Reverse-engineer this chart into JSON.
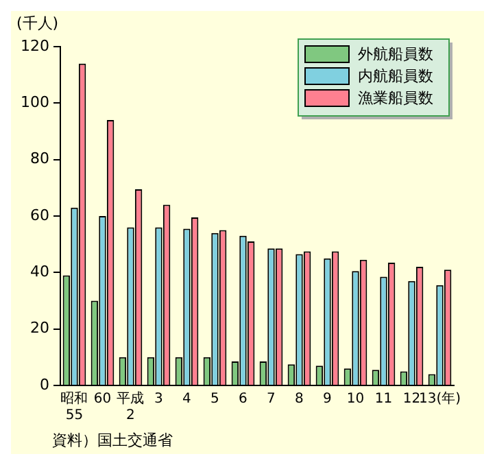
{
  "chart_data": {
    "type": "bar",
    "ylabel": "(千人)",
    "categories": [
      "昭和\n55",
      "60",
      "平成\n2",
      "3",
      "4",
      "5",
      "6",
      "7",
      "8",
      "9",
      "10",
      "11",
      "12",
      "13(年)"
    ],
    "series": [
      {
        "name": "外航船員数",
        "color": "#80c880",
        "values": [
          39,
          30,
          10,
          10,
          10,
          10,
          8.5,
          8.5,
          7.5,
          7,
          6,
          5.5,
          5,
          4
        ]
      },
      {
        "name": "内航船員数",
        "color": "#80d0e0",
        "values": [
          63,
          60,
          56,
          56,
          55.5,
          54,
          53,
          48.5,
          46.5,
          45,
          40.5,
          38.5,
          37,
          35.5
        ]
      },
      {
        "name": "漁業船員数",
        "color": "#ff8090",
        "values": [
          114,
          94,
          69.5,
          64,
          59.5,
          55,
          51,
          48.5,
          47.5,
          47.5,
          44.5,
          43.5,
          42,
          41
        ]
      }
    ],
    "ylim": [
      0,
      120
    ],
    "yticks": [
      0,
      20,
      40,
      60,
      80,
      100,
      120
    ],
    "grid": false,
    "legend": "top right",
    "annotations": [
      "資料）国土交通省"
    ]
  }
}
